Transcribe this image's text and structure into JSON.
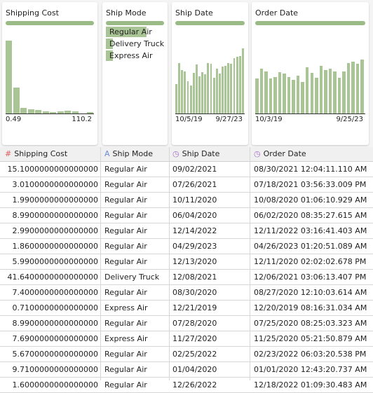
{
  "cards": {
    "shipping_cost": {
      "title": "Shipping Cost",
      "axis_min": "0.49",
      "axis_max": "110.2",
      "histogram_relative": [
        1.0,
        0.36,
        0.08,
        0.06,
        0.05,
        0.03,
        0.02,
        0.03,
        0.04,
        0.03,
        0.0,
        0.02
      ]
    },
    "ship_mode": {
      "title": "Ship Mode",
      "categories": [
        {
          "label": "Regular Air",
          "share": 1.0
        },
        {
          "label": "Delivery Truck",
          "share": 0.17
        },
        {
          "label": "Express Air",
          "share": 0.17
        }
      ]
    },
    "ship_date": {
      "title": "Ship Date",
      "axis_min": "10/5/19",
      "axis_max": "9/27/23",
      "histogram_relative": [
        0.4,
        0.69,
        0.6,
        0.58,
        0.44,
        0.38,
        0.56,
        0.67,
        0.51,
        0.57,
        0.54,
        0.69,
        0.68,
        0.49,
        0.62,
        0.55,
        0.64,
        0.65,
        0.69,
        0.68,
        0.76,
        0.78,
        0.79,
        0.89
      ]
    },
    "order_date": {
      "title": "Order Date",
      "axis_min": "10/3/19",
      "axis_max": "9/25/23",
      "histogram_relative": [
        0.48,
        0.62,
        0.58,
        0.48,
        0.5,
        0.57,
        0.55,
        0.5,
        0.46,
        0.52,
        0.43,
        0.63,
        0.56,
        0.49,
        0.65,
        0.6,
        0.62,
        0.58,
        0.49,
        0.58,
        0.69,
        0.71,
        0.68,
        0.74
      ]
    }
  },
  "icons": {
    "numeric": "hash-icon",
    "string": "string-type-icon",
    "date": "clock-icon",
    "numeric_color": "#e05a5a",
    "string_color": "#6a8bd0",
    "date_color": "#a56ec7",
    "accent": "#9bbb86"
  },
  "columns": [
    {
      "label": "Shipping Cost"
    },
    {
      "label": "Ship Mode"
    },
    {
      "label": "Ship Date"
    },
    {
      "label": "Order Date"
    }
  ],
  "rows": [
    [
      "15.1000000000000000",
      "Regular Air",
      "09/02/2021",
      "08/30/2021 12:04:11.110 AM"
    ],
    [
      "3.0100000000000000",
      "Regular Air",
      "07/26/2021",
      "07/18/2021 03:56:33.009 PM"
    ],
    [
      "1.9900000000000000",
      "Regular Air",
      "10/11/2020",
      "10/08/2020 01:06:10.929 AM"
    ],
    [
      "8.9900000000000000",
      "Regular Air",
      "06/04/2020",
      "06/02/2020 08:35:27.615 AM"
    ],
    [
      "2.9900000000000000",
      "Regular Air",
      "12/14/2022",
      "12/11/2022 03:16:41.403 AM"
    ],
    [
      "1.8600000000000000",
      "Regular Air",
      "04/29/2023",
      "04/26/2023 01:20:51.089 AM"
    ],
    [
      "5.9900000000000000",
      "Regular Air",
      "12/13/2020",
      "12/11/2020 02:02:02.678 PM"
    ],
    [
      "41.6400000000000000",
      "Delivery Truck",
      "12/08/2021",
      "12/06/2021 03:06:13.407 PM"
    ],
    [
      "7.4000000000000000",
      "Regular Air",
      "08/30/2020",
      "08/27/2020 12:10:03.614 AM"
    ],
    [
      "0.7100000000000000",
      "Express Air",
      "12/21/2019",
      "12/20/2019 08:16:31.034 AM"
    ],
    [
      "8.9900000000000000",
      "Regular Air",
      "07/28/2020",
      "07/25/2020 08:25:03.323 AM"
    ],
    [
      "7.6900000000000000",
      "Express Air",
      "11/27/2020",
      "11/25/2020 05:21:50.879 AM"
    ],
    [
      "5.6700000000000000",
      "Regular Air",
      "02/25/2022",
      "02/23/2022 06:03:20.538 PM"
    ],
    [
      "9.7100000000000000",
      "Regular Air",
      "01/04/2020",
      "01/01/2020 12:43:20.737 AM"
    ],
    [
      "1.6000000000000000",
      "Regular Air",
      "12/26/2022",
      "12/18/2022 01:09:30.483 AM"
    ]
  ]
}
